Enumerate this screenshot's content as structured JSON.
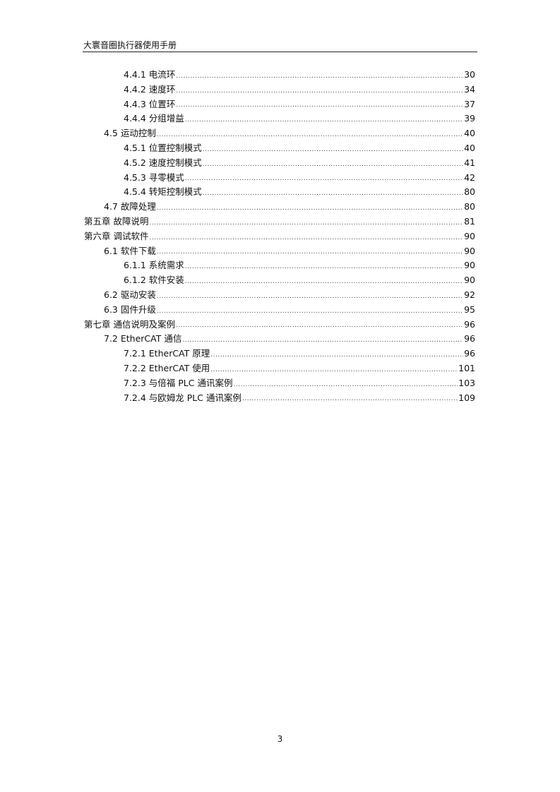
{
  "header": {
    "title": "大寰音圈执行器使用手册"
  },
  "toc": [
    {
      "label": "4.4.1  电流环",
      "page": "30",
      "level": 2
    },
    {
      "label": "4.4.2  速度环",
      "page": "34",
      "level": 2
    },
    {
      "label": "4.4.3  位置环",
      "page": "37",
      "level": 2
    },
    {
      "label": "4.4.4  分组增益",
      "page": "39",
      "level": 2
    },
    {
      "label": "4.5  运动控制",
      "page": "40",
      "level": 1
    },
    {
      "label": "4.5.1  位置控制模式",
      "page": "40",
      "level": 2
    },
    {
      "label": "4.5.2  速度控制模式",
      "page": "41",
      "level": 2
    },
    {
      "label": "4.5.3  寻零模式",
      "page": "42",
      "level": 2
    },
    {
      "label": "4.5.4  转矩控制模式",
      "page": "80",
      "level": 2
    },
    {
      "label": "4.7  故障处理",
      "page": "80",
      "level": 1
    },
    {
      "label": "第五章  故障说明",
      "page": "81",
      "level": 0
    },
    {
      "label": "第六章  调试软件",
      "page": "90",
      "level": 0
    },
    {
      "label": "6.1  软件下载",
      "page": "90",
      "level": 1
    },
    {
      "label": "6.1.1  系统需求",
      "page": "90",
      "level": 2
    },
    {
      "label": "6.1.2  软件安装",
      "page": "90",
      "level": 2
    },
    {
      "label": "6.2  驱动安装",
      "page": "92",
      "level": 1
    },
    {
      "label": "6.3  固件升级",
      "page": "95",
      "level": 1
    },
    {
      "label": "第七章  通信说明及案例",
      "page": "96",
      "level": 0
    },
    {
      "label": "7.2 EtherCAT 通信",
      "page": "96",
      "level": 1
    },
    {
      "label": "7.2.1 EtherCAT 原理",
      "page": "96",
      "level": 2
    },
    {
      "label": "7.2.2 EtherCAT 使用",
      "page": "101",
      "level": 2
    },
    {
      "label": "7.2.3  与倍福 PLC 通讯案例",
      "page": "103",
      "level": 2
    },
    {
      "label": "7.2.4  与欧姆龙 PLC 通讯案例",
      "page": "109",
      "level": 2
    }
  ],
  "footer": {
    "page_number": "3"
  }
}
